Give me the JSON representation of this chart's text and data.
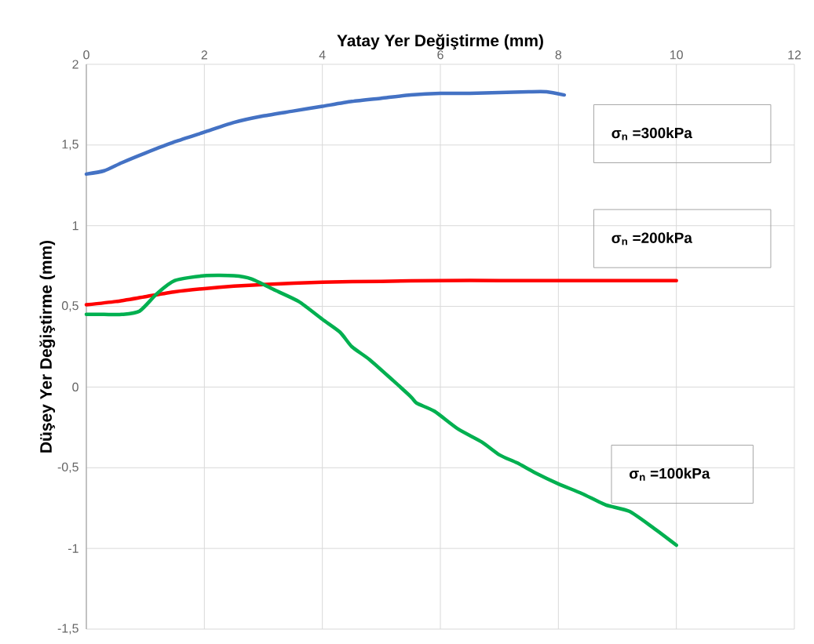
{
  "chart_data": {
    "type": "line",
    "xlabel": "Yatay Yer Değiştirme (mm)",
    "ylabel": "Düşey Yer Değiştirme (mm)",
    "xlim": [
      0,
      12
    ],
    "xticks": [
      0,
      2,
      4,
      6,
      8,
      10,
      12
    ],
    "ylim": [
      -1.5,
      2
    ],
    "yticks": [
      {
        "value": -1.5,
        "label": "-1,5"
      },
      -1,
      {
        "value": -0.5,
        "label": "-0,5"
      },
      0,
      {
        "value": 0.5,
        "label": "0,5"
      },
      1,
      {
        "value": 1.5,
        "label": "1,5"
      },
      2
    ],
    "grid": true,
    "legend": false,
    "marker": "none",
    "line_style": "solid",
    "series": [
      {
        "name": "**σ$_{n}$ =300kPa**",
        "color": "#4472c4",
        "x": [
          0,
          0.3,
          0.6,
          1,
          1.5,
          2,
          2.5,
          3,
          3.5,
          4,
          4.5,
          5,
          5.5,
          6,
          6.5,
          7,
          7.5,
          7.8,
          8.1
        ],
        "values": [
          1.32,
          1.34,
          1.39,
          1.45,
          1.52,
          1.58,
          1.64,
          1.68,
          1.71,
          1.74,
          1.77,
          1.79,
          1.81,
          1.82,
          1.82,
          1.825,
          1.83,
          1.83,
          1.81
        ]
      },
      {
        "name": "**σ$_{n}$ =200kPa**",
        "color": "#ff0000",
        "x": [
          0,
          0.5,
          1,
          1.5,
          2,
          2.5,
          3,
          4,
          5,
          6,
          7,
          8,
          9,
          10
        ],
        "values": [
          0.51,
          0.53,
          0.56,
          0.59,
          0.61,
          0.625,
          0.635,
          0.65,
          0.655,
          0.66,
          0.66,
          0.66,
          0.66,
          0.66
        ]
      },
      {
        "name": "**σ$_{n}$ =100kPa**",
        "color": "#00b050",
        "x": [
          0,
          0.3,
          0.6,
          0.9,
          1.2,
          1.5,
          2,
          2.5,
          2.8,
          3.2,
          3.6,
          4,
          4.3,
          4.5,
          4.8,
          5.2,
          5.5,
          5.6,
          5.9,
          6.3,
          6.7,
          7,
          7.3,
          7.6,
          8,
          8.4,
          8.8,
          9.2,
          9.6,
          10
        ],
        "values": [
          0.45,
          0.45,
          0.45,
          0.47,
          0.58,
          0.66,
          0.69,
          0.69,
          0.67,
          0.6,
          0.53,
          0.42,
          0.34,
          0.25,
          0.17,
          0.04,
          -0.06,
          -0.1,
          -0.15,
          -0.26,
          -0.34,
          -0.42,
          -0.47,
          -0.53,
          -0.6,
          -0.66,
          -0.73,
          -0.77,
          -0.87,
          -0.98
        ]
      }
    ]
  }
}
